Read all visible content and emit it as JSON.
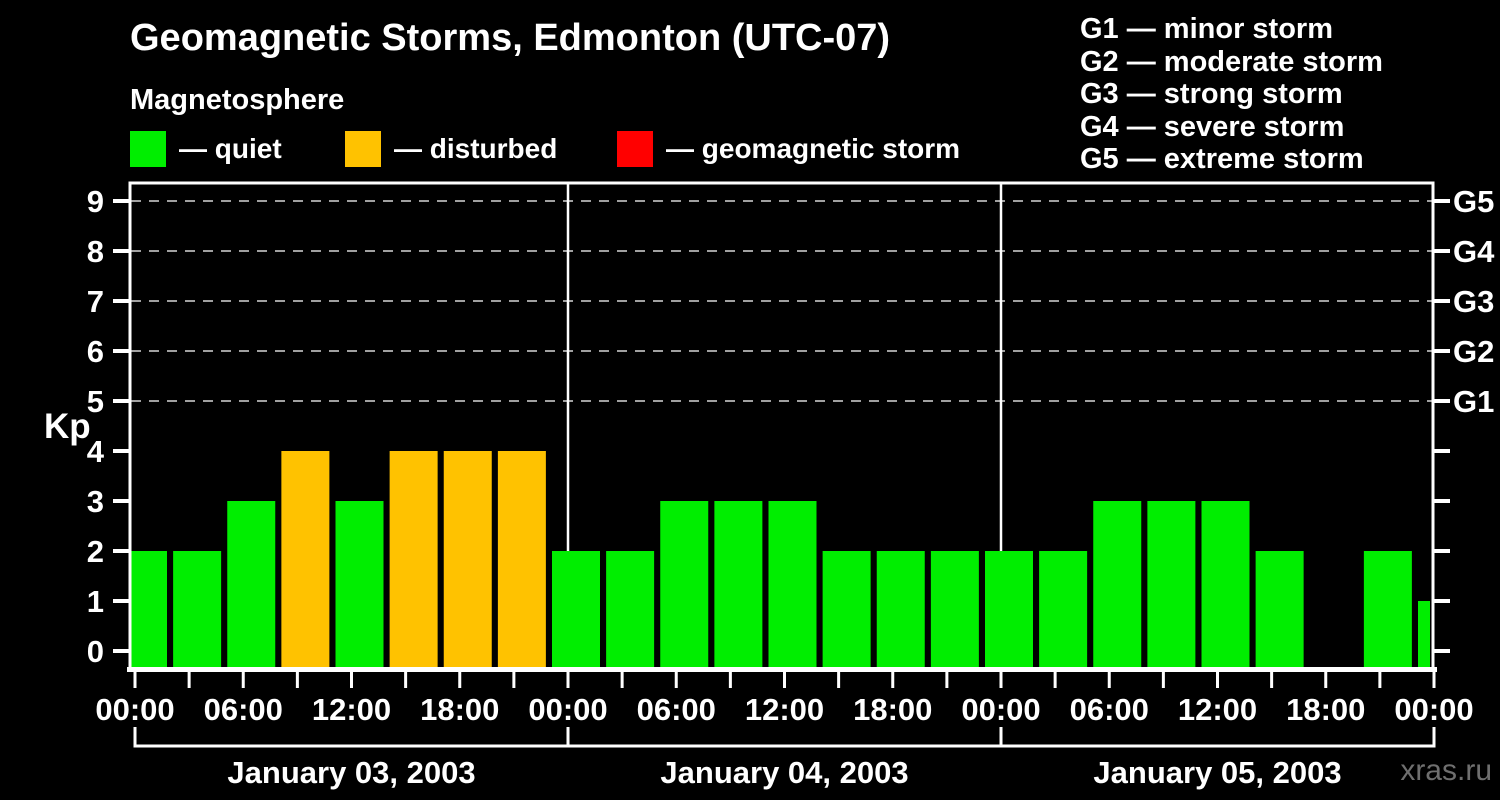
{
  "header": {
    "title": "Geomagnetic Storms, Edmonton (UTC-07)",
    "subtitle": "Magnetosphere"
  },
  "legend": {
    "items": [
      {
        "key": "quiet",
        "label": "— quiet",
        "color": "#00ee00"
      },
      {
        "key": "disturbed",
        "label": "— disturbed",
        "color": "#ffc200"
      },
      {
        "key": "storm",
        "label": "— geomagnetic storm",
        "color": "#ff0000"
      }
    ]
  },
  "g_scale_legend": {
    "items": [
      "G1 — minor storm",
      "G2 — moderate storm",
      "G3 — strong storm",
      "G4 — severe storm",
      "G5 — extreme storm"
    ]
  },
  "watermark": "xras.ru",
  "chart_data": {
    "type": "bar",
    "title": "Geomagnetic Storms, Edmonton (UTC-07)",
    "subtitle": "Magnetosphere",
    "ylabel": "Kp",
    "ylim": [
      0,
      9.6
    ],
    "yticks": [
      0,
      1,
      2,
      3,
      4,
      5,
      6,
      7,
      8,
      9
    ],
    "grid_levels_kp": [
      5,
      6,
      7,
      8,
      9
    ],
    "grid_on": true,
    "right_axis": [
      {
        "label": "G1",
        "kp": 5
      },
      {
        "label": "G2",
        "kp": 6
      },
      {
        "label": "G3",
        "kp": 7
      },
      {
        "label": "G4",
        "kp": 8
      },
      {
        "label": "G5",
        "kp": 9
      }
    ],
    "x_time_labels_cycle": [
      "00:00",
      "06:00",
      "12:00",
      "18:00"
    ],
    "hours_per_bar": 3,
    "hours_total": 72,
    "time_label_every_hours": 6,
    "days": [
      {
        "label": "January 03, 2003",
        "kp": [
          2,
          2,
          3,
          4,
          3,
          4,
          4,
          4
        ]
      },
      {
        "label": "January 04, 2003",
        "kp": [
          2,
          2,
          3,
          3,
          3,
          2,
          2,
          2
        ]
      },
      {
        "label": "January 05, 2003",
        "kp": [
          2,
          2,
          3,
          3,
          3,
          2,
          null,
          2
        ]
      }
    ],
    "next_interval_partial_kp": 1,
    "color_rules": {
      "quiet_max_kp": 3,
      "disturbed_kp": 4,
      "storm_min_kp": 5
    },
    "colors": {
      "quiet": "#00ee00",
      "disturbed": "#ffc200",
      "storm": "#ff0000",
      "grid": "#a0a0a0",
      "axis": "#ffffff",
      "text": "#ffffff",
      "background": "#000000",
      "watermark": "#6f6f6f"
    }
  }
}
